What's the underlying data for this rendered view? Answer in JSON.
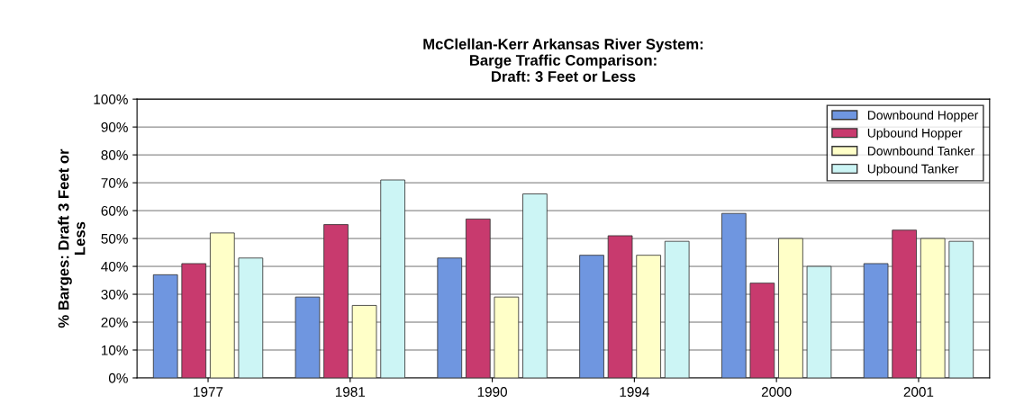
{
  "chart_data": {
    "type": "bar",
    "title": "McClellan-Kerr Arkansas River System:\nBarge Traffic Comparison:\nDraft: 3 Feet or Less",
    "ylabel": "% Barges: Draft 3 Feet or\nLess",
    "categories": [
      "1977",
      "1981",
      "1990",
      "1994",
      "2000",
      "2001"
    ],
    "series": [
      {
        "name": "Downbound Hopper",
        "color": "#6f96e0",
        "values": [
          37,
          29,
          43,
          44,
          59,
          41
        ]
      },
      {
        "name": "Upbound Hopper",
        "color": "#c83a6e",
        "values": [
          41,
          55,
          57,
          51,
          34,
          53
        ]
      },
      {
        "name": "Downbound Tanker",
        "color": "#ffffc8",
        "values": [
          52,
          26,
          29,
          44,
          50,
          50
        ]
      },
      {
        "name": "Upbound Tanker",
        "color": "#ccf5f5",
        "values": [
          43,
          71,
          66,
          49,
          40,
          49
        ]
      }
    ],
    "ylim": [
      0,
      100
    ],
    "yticks": [
      {
        "value": 0,
        "label": "0%"
      },
      {
        "value": 10,
        "label": "10%"
      },
      {
        "value": 20,
        "label": "20%"
      },
      {
        "value": 30,
        "label": "30%"
      },
      {
        "value": 40,
        "label": "40%"
      },
      {
        "value": 50,
        "label": "50%"
      },
      {
        "value": 60,
        "label": "60%"
      },
      {
        "value": 70,
        "label": "70%"
      },
      {
        "value": 80,
        "label": "80%"
      },
      {
        "value": 90,
        "label": "90%"
      },
      {
        "value": 100,
        "label": "100%"
      }
    ],
    "grid": "y",
    "legend": "top right"
  }
}
